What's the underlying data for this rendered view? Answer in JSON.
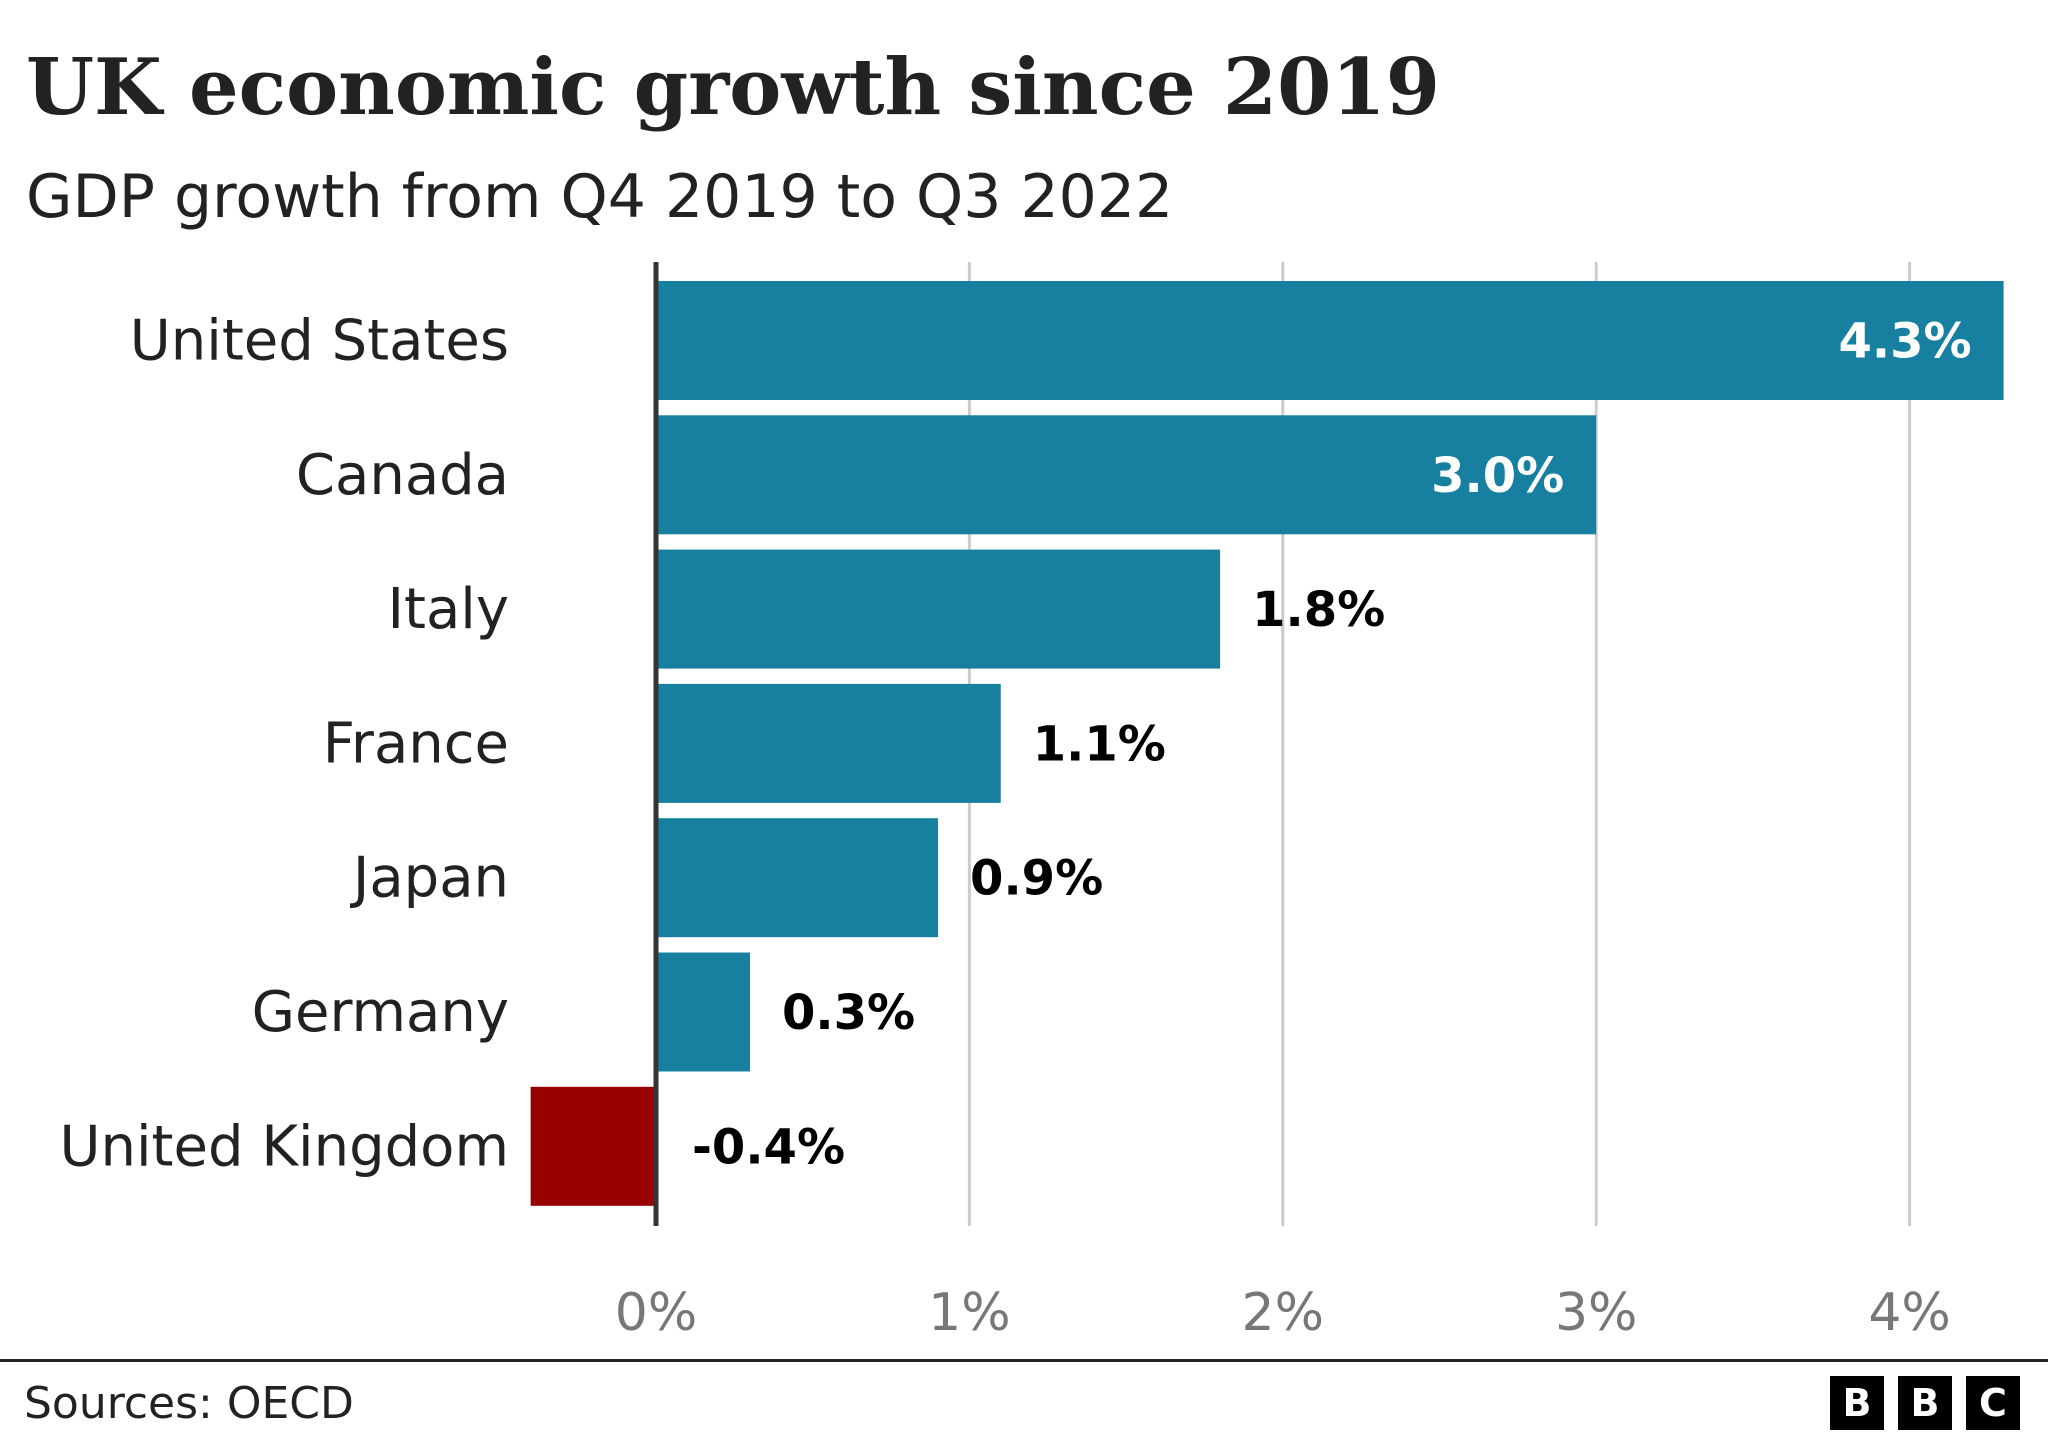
{
  "chart_data": {
    "type": "bar",
    "orientation": "horizontal",
    "title": "UK economic growth since 2019",
    "subtitle": "GDP growth from Q4 2019 to Q3 2022",
    "categories": [
      "United States",
      "Canada",
      "Italy",
      "France",
      "Japan",
      "Germany",
      "United Kingdom"
    ],
    "values": [
      4.3,
      3.0,
      1.8,
      1.1,
      0.9,
      0.3,
      -0.4
    ],
    "data_labels": [
      "4.3%",
      "3.0%",
      "1.8%",
      "1.1%",
      "0.9%",
      "0.3%",
      "-0.4%"
    ],
    "xlim": [
      -0.4,
      4.3
    ],
    "x_ticks": [
      0,
      1,
      2,
      3,
      4
    ],
    "x_tick_labels": [
      "0%",
      "1%",
      "2%",
      "3%",
      "4%"
    ],
    "grid": true,
    "colors": {
      "positive": "#1780a1",
      "negative": "#990000"
    }
  },
  "footer": {
    "sources": "Sources: OECD",
    "logo": [
      "B",
      "B",
      "C"
    ]
  }
}
